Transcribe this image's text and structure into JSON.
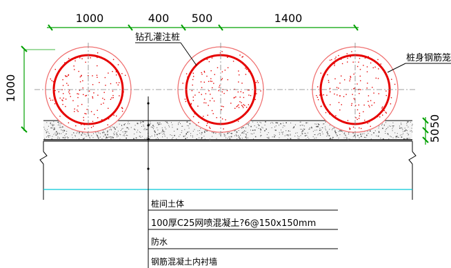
{
  "dimensions": {
    "top": [
      "1000",
      "400",
      "500",
      "1400"
    ],
    "left_height": "1000",
    "right_layers": [
      "50",
      "50"
    ]
  },
  "labels": {
    "pile_type": "钻孔灌注桩",
    "cage": "桩身钢筋笼"
  },
  "legend": [
    "桩间土体",
    "100厚C25网喷混凝土?6@150x150mm",
    "防水",
    "钢筋混凝土内衬墙"
  ],
  "colors": {
    "rebar": "#e60000",
    "pile_edge": "#f07070",
    "dimension": "#00a000",
    "cyan_line": "#00c8d8",
    "concrete_speckle": "#555555"
  }
}
